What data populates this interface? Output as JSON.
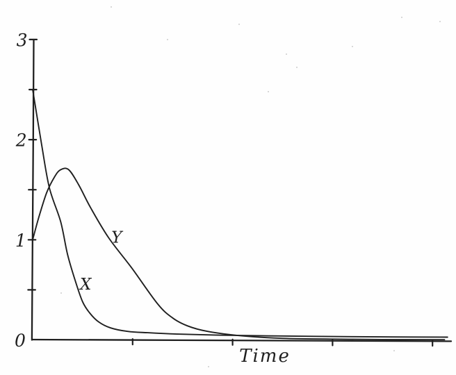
{
  "figure": {
    "background": "#fefefe",
    "ink_color": "#1f1f1f",
    "style": "hand-drawn scanned ink plot"
  },
  "chart_data": {
    "type": "line",
    "title": "",
    "xlabel": "Time",
    "ylabel": "",
    "grid": false,
    "legend_position": "inline-curve-labels",
    "x_axis": {
      "min": 0,
      "max": 4.2,
      "ticks": [
        1,
        2,
        3,
        4
      ],
      "tick_labels_visible": false
    },
    "y_axis": {
      "min": 0,
      "max": 3,
      "ticks": [
        0.5,
        1,
        1.5,
        2,
        2.5,
        3
      ],
      "labeled_ticks": [
        {
          "value": 3,
          "label": "3"
        },
        {
          "value": 2,
          "label": "2"
        },
        {
          "value": 1,
          "label": "1"
        },
        {
          "value": 0,
          "label": "0"
        }
      ]
    },
    "series": [
      {
        "name": "X",
        "description": "exponential-like decay from 2.5 toward 0",
        "label_position": {
          "t": 0.53,
          "value": 0.55
        },
        "points": [
          [
            0,
            2.5
          ],
          [
            0.09,
            1.95
          ],
          [
            0.167,
            1.52
          ],
          [
            0.28,
            1.18
          ],
          [
            0.35,
            0.85
          ],
          [
            0.43,
            0.58
          ],
          [
            0.5,
            0.38
          ],
          [
            0.57,
            0.27
          ],
          [
            0.66,
            0.18
          ],
          [
            0.78,
            0.12
          ],
          [
            0.95,
            0.085
          ],
          [
            1.15,
            0.072
          ],
          [
            1.45,
            0.058
          ],
          [
            1.9,
            0.047
          ],
          [
            2.4,
            0.04
          ],
          [
            3.0,
            0.034
          ],
          [
            3.6,
            0.03
          ],
          [
            4.15,
            0.028
          ]
        ]
      },
      {
        "name": "Y",
        "description": "rises from 1.0 to flat peak ~1.7 near t=0.3 then decays to 0",
        "label_position": {
          "t": 0.84,
          "value": 1.02
        },
        "points": [
          [
            0,
            1.0
          ],
          [
            0.06,
            1.22
          ],
          [
            0.14,
            1.47
          ],
          [
            0.22,
            1.63
          ],
          [
            0.28,
            1.7
          ],
          [
            0.36,
            1.7
          ],
          [
            0.46,
            1.55
          ],
          [
            0.58,
            1.32
          ],
          [
            0.76,
            1.02
          ],
          [
            0.99,
            0.72
          ],
          [
            1.25,
            0.36
          ],
          [
            1.4,
            0.22
          ],
          [
            1.55,
            0.14
          ],
          [
            1.75,
            0.085
          ],
          [
            2.1,
            0.04
          ],
          [
            2.5,
            0.016
          ],
          [
            3.0,
            0.008
          ],
          [
            3.5,
            0.004
          ],
          [
            4.12,
            0.002
          ]
        ]
      }
    ],
    "annotations": {
      "curve_crossings": [
        {
          "t": 0.167,
          "value": 1.52
        },
        {
          "t": 2.1,
          "value": 0.04
        }
      ]
    }
  }
}
